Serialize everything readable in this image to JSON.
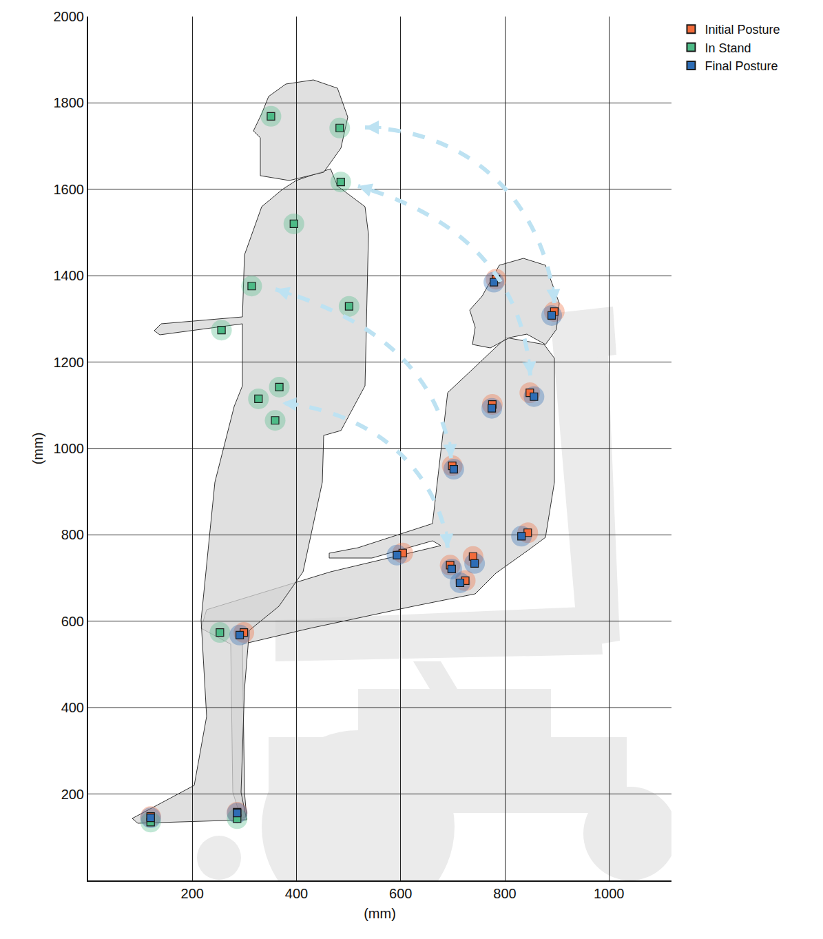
{
  "chart_data": {
    "type": "scatter",
    "xlabel": "(mm)",
    "ylabel": "(mm)",
    "xlim": [
      0,
      1120
    ],
    "ylim": [
      0,
      2000
    ],
    "xticks": [
      200,
      400,
      600,
      800,
      1000
    ],
    "yticks": [
      200,
      400,
      600,
      800,
      1000,
      1200,
      1400,
      1600,
      1800,
      2000
    ],
    "grid": true,
    "legend": "right",
    "marker": "square",
    "series": [
      {
        "name": "Initial Posture",
        "color": "#f26b3a",
        "x": [
          895,
          783,
          848,
          776,
          699,
          844,
          604,
          739,
          695,
          724,
          299,
          286,
          120
        ],
        "y": [
          1317,
          1392,
          1129,
          1102,
          960,
          805,
          758,
          750,
          730,
          694,
          574,
          158,
          148
        ]
      },
      {
        "name": "In Stand",
        "color": "#4dbb87",
        "x": [
          351,
          483,
          485,
          395,
          314,
          501,
          256,
          367,
          327,
          359,
          253,
          286,
          120
        ],
        "y": [
          1769,
          1742,
          1617,
          1520,
          1376,
          1329,
          1274,
          1142,
          1115,
          1065,
          574,
          143,
          135
        ]
      },
      {
        "name": "Final Posture",
        "color": "#2e6db5",
        "x": [
          890,
          779,
          856,
          775,
          702,
          832,
          593,
          742,
          698,
          714,
          291,
          286,
          120
        ],
        "y": [
          1308,
          1385,
          1120,
          1093,
          952,
          797,
          753,
          734,
          721,
          689,
          568,
          156,
          145
        ]
      }
    ]
  }
}
